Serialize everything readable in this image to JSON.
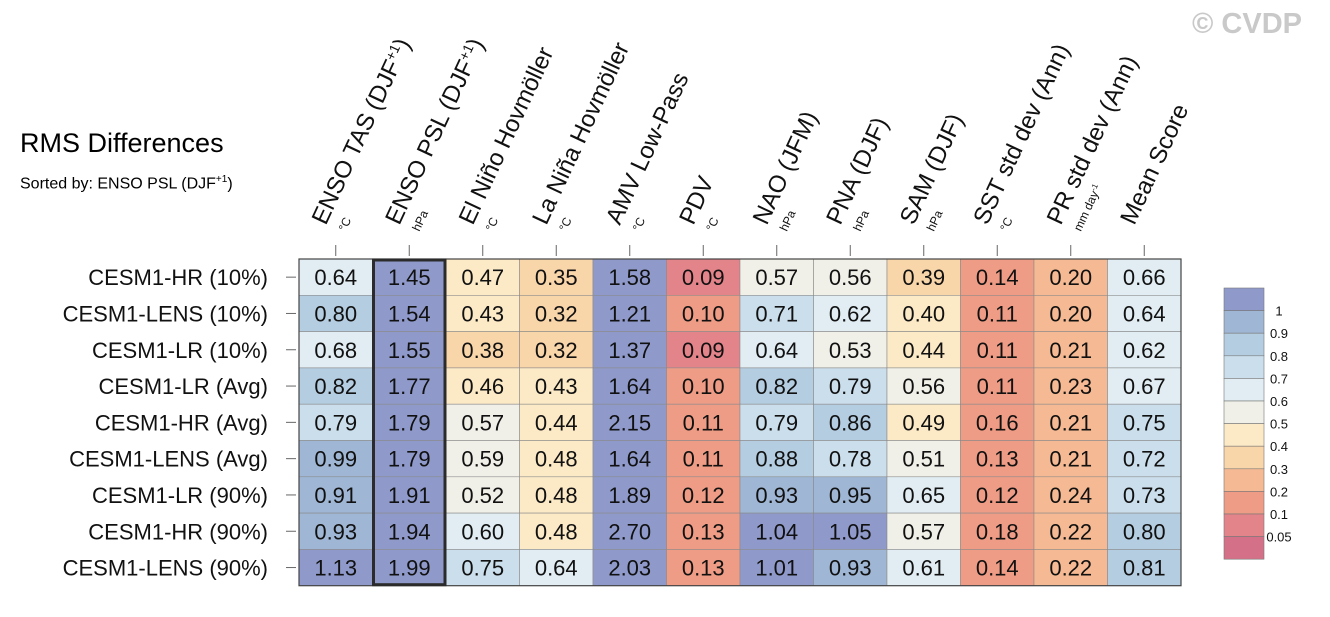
{
  "watermark": "© CVDP",
  "title": "RMS Differences",
  "subtitle": {
    "text": "Sorted by: ENSO PSL (DJF",
    "sup": "+1",
    "close": ")"
  },
  "chart_data": {
    "type": "heatmap",
    "title": "RMS Differences",
    "columns": [
      {
        "label": "ENSO TAS (DJF",
        "sup": "+1",
        "close": ")",
        "unit": "°C"
      },
      {
        "label": "ENSO PSL (DJF",
        "sup": "+1",
        "close": ")",
        "unit": "hPa"
      },
      {
        "label": "El Niño Hovmöller",
        "unit": "°C"
      },
      {
        "label": "La Niña Hovmöller",
        "unit": "°C"
      },
      {
        "label": "AMV Low-Pass",
        "unit": "°C"
      },
      {
        "label": "PDV",
        "unit": "°C"
      },
      {
        "label": "NAO (JFM)",
        "unit": "hPa"
      },
      {
        "label": "PNA (DJF)",
        "unit": "hPa"
      },
      {
        "label": "SAM (DJF)",
        "unit": "hPa"
      },
      {
        "label": "SST std dev (Ann)",
        "unit": "°C"
      },
      {
        "label": "PR std dev (Ann)",
        "unit": "mm day",
        "unit_sup": "-1"
      },
      {
        "label": "Mean Score",
        "unit": ""
      }
    ],
    "rows": [
      "CESM1-HR (10%)",
      "CESM1-LENS (10%)",
      "CESM1-LR (10%)",
      "CESM1-LR (Avg)",
      "CESM1-HR (Avg)",
      "CESM1-LENS (Avg)",
      "CESM1-LR (90%)",
      "CESM1-HR (90%)",
      "CESM1-LENS (90%)"
    ],
    "values": [
      [
        "0.64",
        "1.45",
        "0.47",
        "0.35",
        "1.58",
        "0.09",
        "0.57",
        "0.56",
        "0.39",
        "0.14",
        "0.20",
        "0.66"
      ],
      [
        "0.80",
        "1.54",
        "0.43",
        "0.32",
        "1.21",
        "0.10",
        "0.71",
        "0.62",
        "0.40",
        "0.11",
        "0.20",
        "0.64"
      ],
      [
        "0.68",
        "1.55",
        "0.38",
        "0.32",
        "1.37",
        "0.09",
        "0.64",
        "0.53",
        "0.44",
        "0.11",
        "0.21",
        "0.62"
      ],
      [
        "0.82",
        "1.77",
        "0.46",
        "0.43",
        "1.64",
        "0.10",
        "0.82",
        "0.79",
        "0.56",
        "0.11",
        "0.23",
        "0.67"
      ],
      [
        "0.79",
        "1.79",
        "0.57",
        "0.44",
        "2.15",
        "0.11",
        "0.79",
        "0.86",
        "0.49",
        "0.16",
        "0.21",
        "0.75"
      ],
      [
        "0.99",
        "1.79",
        "0.59",
        "0.48",
        "1.64",
        "0.11",
        "0.88",
        "0.78",
        "0.51",
        "0.13",
        "0.21",
        "0.72"
      ],
      [
        "0.91",
        "1.91",
        "0.52",
        "0.48",
        "1.89",
        "0.12",
        "0.93",
        "0.95",
        "0.65",
        "0.12",
        "0.24",
        "0.73"
      ],
      [
        "0.93",
        "1.94",
        "0.60",
        "0.48",
        "2.70",
        "0.13",
        "1.04",
        "1.05",
        "0.57",
        "0.18",
        "0.22",
        "0.80"
      ],
      [
        "1.13",
        "1.99",
        "0.75",
        "0.64",
        "2.03",
        "0.13",
        "1.01",
        "0.93",
        "0.61",
        "0.14",
        "0.22",
        "0.81"
      ]
    ],
    "highlight_column": 1,
    "colorbar": {
      "tick_labels": [
        "1",
        "0.9",
        "0.8",
        "0.7",
        "0.6",
        "0.5",
        "0.4",
        "0.3",
        "0.2",
        "0.1",
        "0.05"
      ],
      "bins": [
        {
          "min": 1.0,
          "color": "#8F9ACB"
        },
        {
          "min": 0.9,
          "color": "#9FB6D4"
        },
        {
          "min": 0.8,
          "color": "#B5CDE1"
        },
        {
          "min": 0.7,
          "color": "#CBDEEB"
        },
        {
          "min": 0.6,
          "color": "#E1EDF3"
        },
        {
          "min": 0.5,
          "color": "#F1F0E8"
        },
        {
          "min": 0.4,
          "color": "#FCEAC7"
        },
        {
          "min": 0.3,
          "color": "#F9D5AA"
        },
        {
          "min": 0.2,
          "color": "#F5BA93"
        },
        {
          "min": 0.1,
          "color": "#EE9C85"
        },
        {
          "min": 0.05,
          "color": "#E3838A"
        },
        {
          "min": 0.0,
          "color": "#D47188"
        }
      ]
    }
  }
}
